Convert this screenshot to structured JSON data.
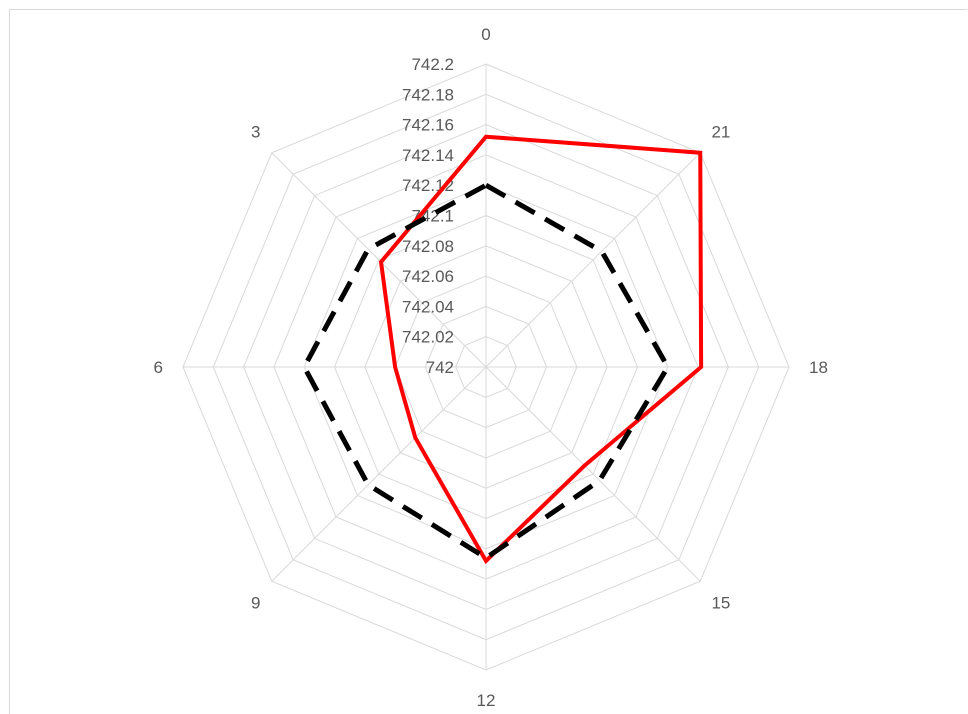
{
  "chart_data": {
    "type": "radar",
    "title": "",
    "categories": [
      "0",
      "21",
      "18",
      "15",
      "12",
      "9",
      "6",
      "3"
    ],
    "radial_axis": {
      "min": 742,
      "max": 742.2,
      "step": 0.02,
      "tick_labels": [
        "742",
        "742.02",
        "742.04",
        "742.06",
        "742.08",
        "742.1",
        "742.12",
        "742.14",
        "742.16",
        "742.18",
        "742.2"
      ]
    },
    "grid": true,
    "legend": "none",
    "series": [
      {
        "values": [
          742.152,
          742.2,
          742.142,
          742.092,
          742.128,
          742.066,
          742.06,
          742.098
        ],
        "color": "#ff0000",
        "dash": "solid"
      },
      {
        "values": [
          742.12,
          742.108,
          742.12,
          742.106,
          742.126,
          742.11,
          742.12,
          742.11
        ],
        "color": "#000000",
        "dash": "dashed"
      }
    ]
  }
}
